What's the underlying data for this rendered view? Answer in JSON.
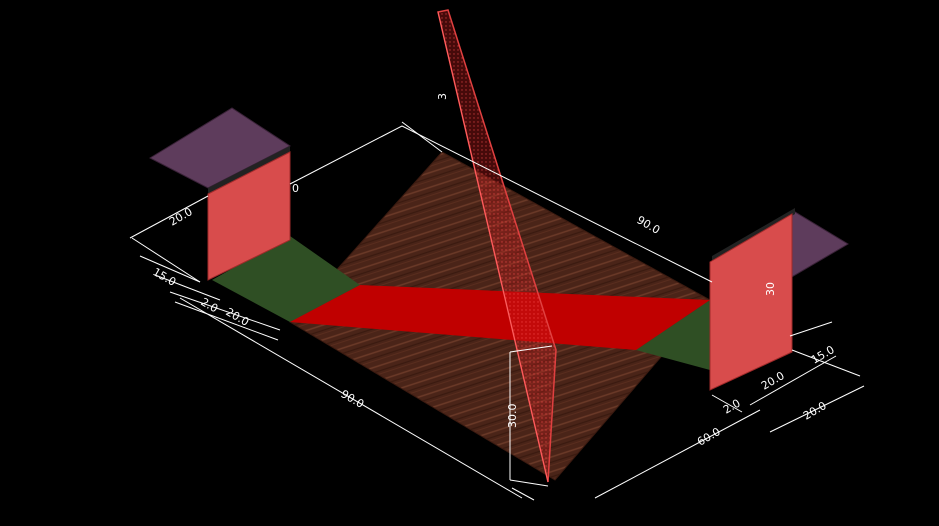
{
  "colors": {
    "background": "#000000",
    "floor_wood": "#4a2418",
    "floor_grain": "#6b3a28",
    "mat_green": "#2f4f24",
    "mat_red": "#c00000",
    "plate_pink": "#d84c4c",
    "cap_purple": "#5e3c5c",
    "dimension_line": "#ffffff"
  },
  "dimensions": {
    "left_support_height": "20.0",
    "left_gap": "15.0",
    "left_offset": "2.0",
    "left_width": "20.0",
    "front_length": "90.0",
    "back_length": "90.0",
    "back_partial": "0",
    "center_plate_height": "30.0",
    "center_plate_top": "3",
    "right_plate_height": "30",
    "right_gap": "15.0",
    "right_width": "20.0",
    "right_offset": "2.0",
    "right_far": "20.0",
    "depth": "60.0"
  }
}
